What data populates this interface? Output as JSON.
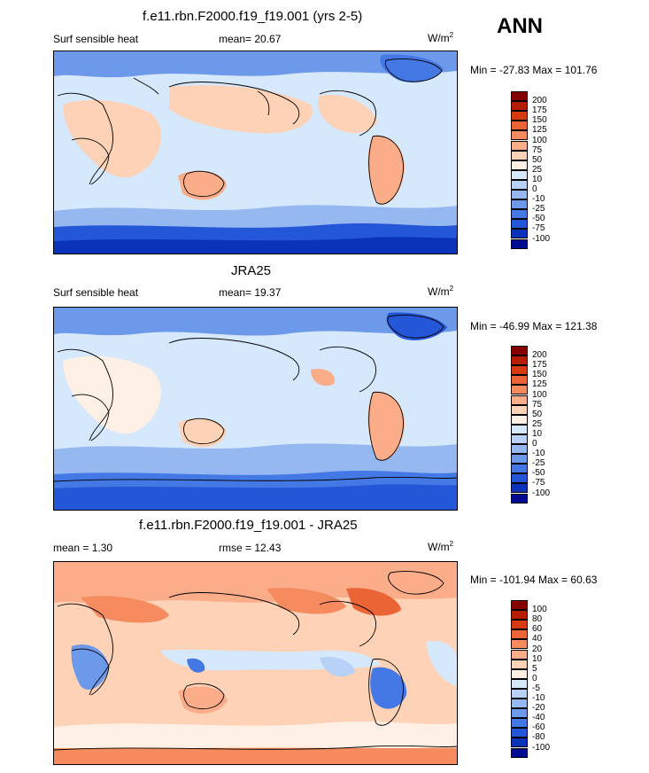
{
  "season": "ANN",
  "panels": [
    {
      "title": "f.e11.rbn.F2000.f19_f19.001 (yrs 2-5)",
      "left_label": "Surf sensible heat",
      "center_label": "mean=  20.67",
      "units_base": "W/m",
      "units_exp": "2",
      "minmax": "Min = -27.83 Max = 101.76",
      "colorbar_labels": [
        "200",
        "175",
        "150",
        "125",
        "100",
        "75",
        "50",
        "25",
        "10",
        "0",
        "-10",
        "-25",
        "-50",
        "-75",
        "-100"
      ],
      "colors": [
        "#870000",
        "#b51c00",
        "#d83a0f",
        "#ea6436",
        "#f58b5f",
        "#fbad89",
        "#fed2b6",
        "#fef0e4",
        "#d6e8fb",
        "#b7d2f6",
        "#95b8f0",
        "#6d99ea",
        "#4478e5",
        "#2456d8",
        "#0b33b9",
        "#000c8f"
      ]
    },
    {
      "title": "JRA25",
      "left_label": "Surf sensible heat",
      "center_label": "mean=  19.37",
      "units_base": "W/m",
      "units_exp": "2",
      "minmax": "Min = -46.99 Max = 121.38",
      "colorbar_labels": [
        "200",
        "175",
        "150",
        "125",
        "100",
        "75",
        "50",
        "25",
        "10",
        "0",
        "-10",
        "-25",
        "-50",
        "-75",
        "-100"
      ],
      "colors": [
        "#870000",
        "#b51c00",
        "#d83a0f",
        "#ea6436",
        "#f58b5f",
        "#fbad89",
        "#fed2b6",
        "#fef0e4",
        "#d6e8fb",
        "#b7d2f6",
        "#95b8f0",
        "#6d99ea",
        "#4478e5",
        "#2456d8",
        "#0b33b9",
        "#000c8f"
      ]
    },
    {
      "title": "f.e11.rbn.F2000.f19_f19.001 - JRA25",
      "left_label": "mean =   1.30",
      "center_label": "rmse =  12.43",
      "units_base": "W/m",
      "units_exp": "2",
      "minmax": "Min = -101.94 Max =  60.63",
      "colorbar_labels": [
        "100",
        "80",
        "60",
        "40",
        "20",
        "10",
        "5",
        "0",
        "-5",
        "-10",
        "-20",
        "-40",
        "-60",
        "-80",
        "-100"
      ],
      "colors": [
        "#870000",
        "#b51c00",
        "#d83a0f",
        "#ea6436",
        "#f58b5f",
        "#fbad89",
        "#fed2b6",
        "#fef0e4",
        "#d6e8fb",
        "#b7d2f6",
        "#95b8f0",
        "#6d99ea",
        "#4478e5",
        "#2456d8",
        "#0b33b9",
        "#000c8f"
      ]
    }
  ]
}
